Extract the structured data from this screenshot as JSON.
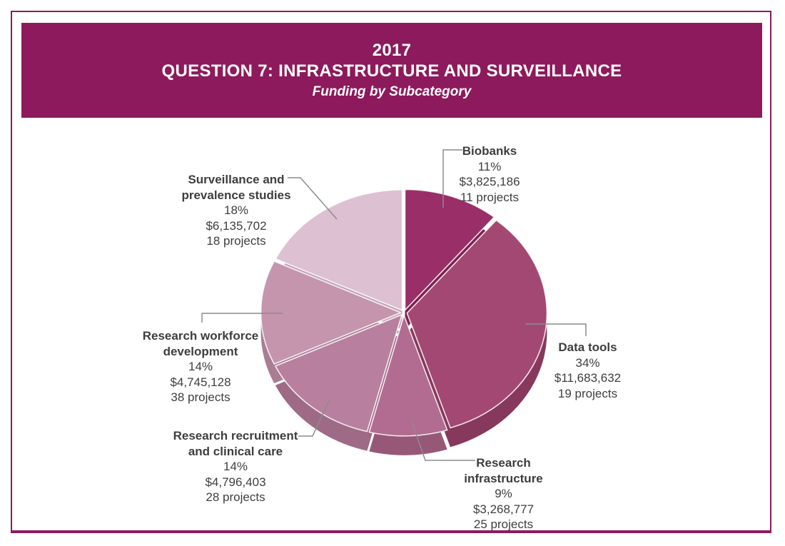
{
  "page": {
    "border_color": "#8D1A5C",
    "background": "#FFFFFF",
    "label_text_color": "#3E3E40",
    "leader_line_color": "#8C8C8C"
  },
  "header": {
    "year": "2017",
    "title": "QUESTION 7: INFRASTRUCTURE AND SURVEILLANCE",
    "subtitle": "Funding by Subcategory",
    "background": "#8D1A5C",
    "text_color": "#FFFFFF"
  },
  "chart_data": {
    "type": "pie",
    "style": "3d-exploded",
    "start_angle_deg": 0,
    "direction": "clockwise",
    "legend_position": "callout-labels",
    "slices": [
      {
        "label": "Biobanks",
        "percent": 11,
        "percent_label": "11%",
        "amount_usd": 3825186,
        "amount": "$3,825,186",
        "projects": 11,
        "projects_label": "11 projects",
        "color": "#9A2E68",
        "side_color": "#7D2253"
      },
      {
        "label": "Data tools",
        "percent": 34,
        "percent_label": "34%",
        "amount_usd": 11683632,
        "amount": "$11,683,632",
        "projects": 19,
        "projects_label": "19 projects",
        "color": "#A34873",
        "side_color": "#87385D"
      },
      {
        "label": "Research infrastructure",
        "percent": 9,
        "percent_label": "9%",
        "amount_usd": 3268777,
        "amount": "$3,268,777",
        "projects": 25,
        "projects_label": "25 projects",
        "color": "#B26B91",
        "side_color": "#975878"
      },
      {
        "label": "Research recruitment and clinical care",
        "percent": 14,
        "percent_label": "14%",
        "amount_usd": 4796403,
        "amount": "$4,796,403",
        "projects": 28,
        "projects_label": "28 projects",
        "color": "#B8809E",
        "side_color": "#9E6A85"
      },
      {
        "label": "Research workforce development",
        "percent": 14,
        "percent_label": "14%",
        "amount_usd": 4745128,
        "amount": "$4,745,128",
        "projects": 38,
        "projects_label": "38 projects",
        "color": "#C495AD",
        "side_color": "#A97E95"
      },
      {
        "label": "Surveillance and prevalence studies",
        "percent": 18,
        "percent_label": "18%",
        "amount_usd": 6135702,
        "amount": "$6,135,702",
        "projects": 18,
        "projects_label": "18 projects",
        "color": "#DDC0D2",
        "side_color": "#C3A4B8"
      }
    ]
  }
}
